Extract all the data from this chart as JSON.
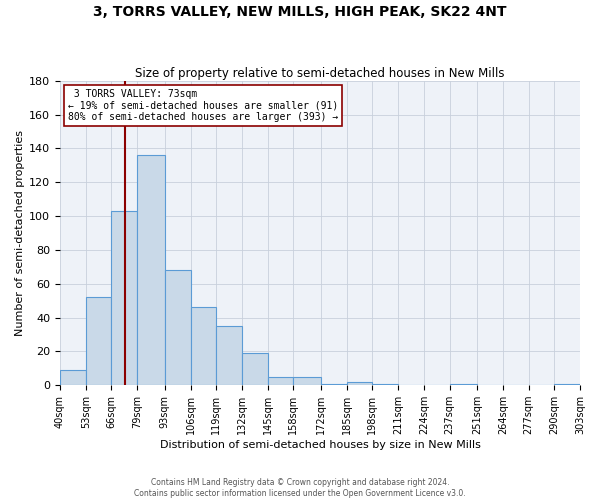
{
  "title": "3, TORRS VALLEY, NEW MILLS, HIGH PEAK, SK22 4NT",
  "subtitle": "Size of property relative to semi-detached houses in New Mills",
  "xlabel": "Distribution of semi-detached houses by size in New Mills",
  "ylabel_text": "Number of semi-detached properties",
  "property_size": 73,
  "property_label": "3 TORRS VALLEY: 73sqm",
  "pct_smaller": 19,
  "count_smaller": 91,
  "pct_larger": 80,
  "count_larger": 393,
  "bin_edges": [
    40,
    53,
    66,
    79,
    93,
    106,
    119,
    132,
    145,
    158,
    172,
    185,
    198,
    211,
    224,
    237,
    251,
    264,
    277,
    290,
    303
  ],
  "bin_labels": [
    "40sqm",
    "53sqm",
    "66sqm",
    "79sqm",
    "93sqm",
    "106sqm",
    "119sqm",
    "132sqm",
    "145sqm",
    "158sqm",
    "172sqm",
    "185sqm",
    "198sqm",
    "211sqm",
    "224sqm",
    "237sqm",
    "251sqm",
    "264sqm",
    "277sqm",
    "290sqm",
    "303sqm"
  ],
  "counts": [
    9,
    52,
    103,
    136,
    68,
    46,
    35,
    19,
    5,
    5,
    1,
    2,
    1,
    0,
    0,
    1,
    0,
    0,
    0,
    1
  ],
  "bar_facecolor": "#c9d9e8",
  "bar_edgecolor": "#5b9bd5",
  "vline_color": "#8b0000",
  "grid_color": "#c8d0dc",
  "background_color": "#eef2f8",
  "annotation_box_edgecolor": "#8b0000",
  "ylim": [
    0,
    180
  ],
  "yticks": [
    0,
    20,
    40,
    60,
    80,
    100,
    120,
    140,
    160,
    180
  ],
  "footer_line1": "Contains HM Land Registry data © Crown copyright and database right 2024.",
  "footer_line2": "Contains public sector information licensed under the Open Government Licence v3.0."
}
